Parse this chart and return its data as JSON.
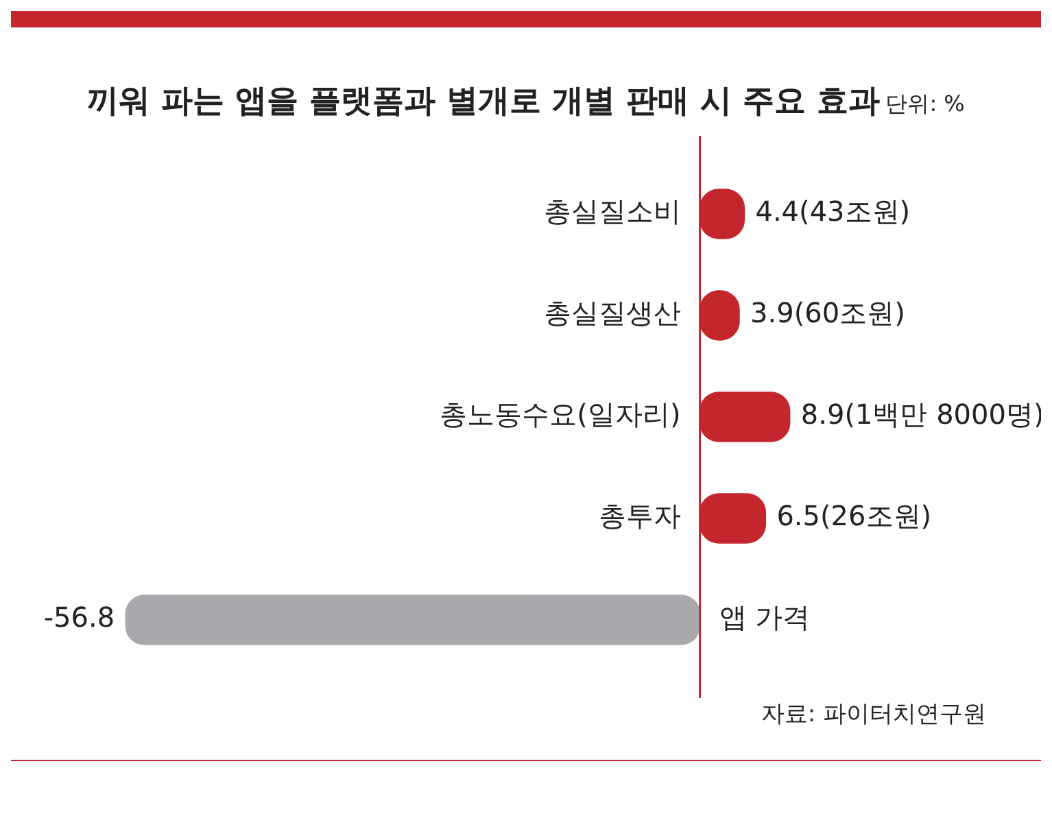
{
  "chart_data": {
    "type": "bar",
    "orientation": "horizontal",
    "title": "끼워 파는 앱을 플랫폼과 별개로 개별 판매 시 주요 효과",
    "subtitle": "단위: %",
    "categories": [
      "총실질소비",
      "총실질생산",
      "총노동수요(일자리)",
      "총투자",
      "앱 가격"
    ],
    "values": [
      4.4,
      3.9,
      8.9,
      6.5,
      -56.8
    ],
    "value_labels": [
      "4.4(43조원)",
      "3.9(60조원)",
      "8.9(1백만 8000명)",
      "6.5(26조원)",
      "-56.8"
    ],
    "colors": [
      "#c4262e",
      "#c4262e",
      "#c4262e",
      "#c4262e",
      "#a8a9ad"
    ],
    "legend": false,
    "annotations": [
      "자료: 파이터치연구원"
    ]
  }
}
